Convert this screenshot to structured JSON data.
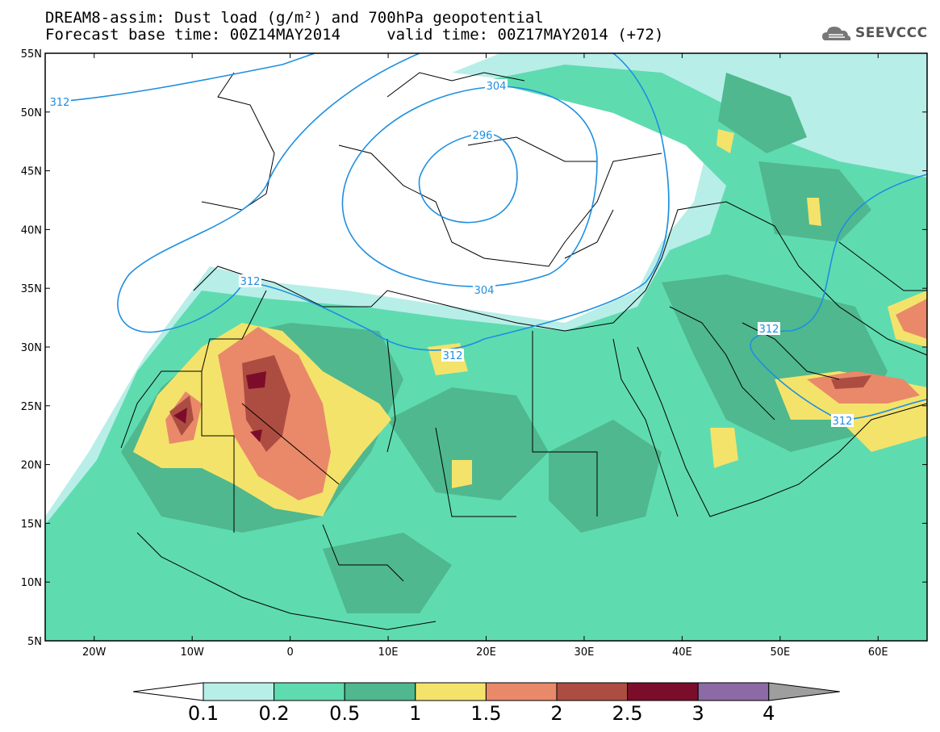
{
  "header": {
    "title_line1": "DREAM8-assim: Dust load (g/m²) and 700hPa geopotential",
    "title_line2": "Forecast base time: 00Z14MAY2014     valid time: 00Z17MAY2014 (+72)",
    "logo_text": "SEEVCCC",
    "logo_icon": "cloud-icon"
  },
  "axes": {
    "lat_labels": [
      "55N",
      "50N",
      "45N",
      "40N",
      "35N",
      "30N",
      "25N",
      "20N",
      "15N",
      "10N",
      "5N"
    ],
    "lon_labels": [
      "20W",
      "10W",
      "0",
      "10E",
      "20E",
      "30E",
      "40E",
      "50E",
      "60E"
    ],
    "lat_range": [
      5,
      55
    ],
    "lon_range": [
      -25,
      65
    ]
  },
  "contours": {
    "labels": [
      "312",
      "304",
      "296",
      "304",
      "312",
      "312",
      "312",
      "312",
      "312"
    ]
  },
  "colorbar": {
    "labels": [
      "0.1",
      "0.2",
      "0.5",
      "1",
      "1.5",
      "2",
      "2.5",
      "3",
      "4"
    ],
    "colors": [
      "#ffffff",
      "#b8eee8",
      "#5fdbb0",
      "#4fb88e",
      "#f4e36a",
      "#e9896a",
      "#ad4d42",
      "#7c0d2a",
      "#8b6aa5",
      "#9e9e9e"
    ]
  }
}
